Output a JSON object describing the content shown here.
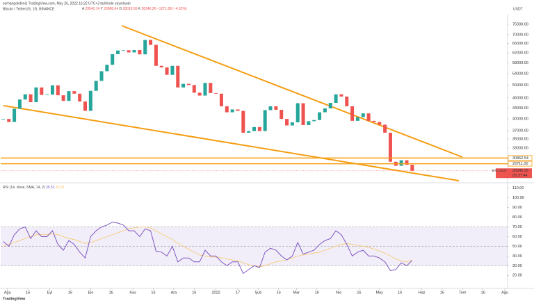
{
  "header": {
    "publisher": "serhangokdeniz TradingView.com, May 26, 2022 16:22 UTC+3 tarihinde yayınlandı",
    "symbol": "Bitcoin / TetherUS, 1G, BINANCE",
    "ohlc": [
      {
        "key": "A",
        "value": 29542.14
      },
      {
        "key": "Y",
        "value": 29886.64
      },
      {
        "key": "D",
        "value": 28019.56
      },
      {
        "key": "K",
        "value": 28346.26
      }
    ],
    "change": "−1271.88 (−4.32%)",
    "currency": "USDT",
    "brand": "TradingView"
  },
  "chart_data": [
    {
      "type": "candlestick",
      "log_scale": true,
      "ylim": [
        26300,
        78500
      ],
      "xlim": [
        -0.5,
        92.5
      ],
      "yticks": [
        {
          "value": 75000,
          "label": "75000.00"
        },
        {
          "value": 70000,
          "label": "70000.00"
        },
        {
          "value": 66000,
          "label": "66000.00"
        },
        {
          "value": 62000,
          "label": "62000.00"
        },
        {
          "value": 58000,
          "label": "58000.00"
        },
        {
          "value": 54000,
          "label": "54000.00"
        },
        {
          "value": 50000,
          "label": "50000.00"
        },
        {
          "value": 46000,
          "label": "46000.00"
        },
        {
          "value": 43000,
          "label": "43000.00"
        },
        {
          "value": 40000,
          "label": "40000.00"
        },
        {
          "value": 37000,
          "label": "37000.00"
        },
        {
          "value": 35000,
          "label": "35000.00"
        },
        {
          "value": 33000,
          "label": "33000.00"
        }
      ],
      "xticks": [
        {
          "value": 0.75,
          "label": "Ağu"
        },
        {
          "value": 4.5,
          "label": "16"
        },
        {
          "value": 8.5,
          "label": "Eyl"
        },
        {
          "value": 12.25,
          "label": "16"
        },
        {
          "value": 16,
          "label": "Eki"
        },
        {
          "value": 19.75,
          "label": "16"
        },
        {
          "value": 23.75,
          "label": "Kas"
        },
        {
          "value": 27.5,
          "label": "16"
        },
        {
          "value": 31.25,
          "label": "Ara"
        },
        {
          "value": 35,
          "label": "16"
        },
        {
          "value": 39,
          "label": "2022"
        },
        {
          "value": 43,
          "label": "17"
        },
        {
          "value": 46.75,
          "label": "Şub"
        },
        {
          "value": 50.5,
          "label": "16"
        },
        {
          "value": 53.75,
          "label": "Mar"
        },
        {
          "value": 57.5,
          "label": "16"
        },
        {
          "value": 61.5,
          "label": "Nis"
        },
        {
          "value": 65.25,
          "label": "16"
        },
        {
          "value": 69,
          "label": "May"
        },
        {
          "value": 72.75,
          "label": "16"
        },
        {
          "value": 76.75,
          "label": "Haz"
        },
        {
          "value": 80.5,
          "label": "16"
        },
        {
          "value": 84.25,
          "label": "Tem"
        },
        {
          "value": 88,
          "label": "16"
        },
        {
          "value": 92,
          "label": "Ağu"
        }
      ],
      "series": [
        {
          "name": "BTCUSDT",
          "up_color": "#26a69a",
          "down_color": "#ef5350",
          "values": [
            40000,
            39200,
            42800,
            45500,
            47100,
            44700,
            49300,
            46900,
            47000,
            50000,
            46800,
            45100,
            48100,
            47300,
            44900,
            42200,
            48200,
            51500,
            54900,
            57300,
            61500,
            63000,
            63100,
            62200,
            63200,
            61400,
            67600,
            65400,
            56900,
            56300,
            53600,
            56900,
            49300,
            50500,
            50100,
            47600,
            46700,
            50800,
            47500,
            47300,
            43500,
            41800,
            42600,
            42200,
            36500,
            36900,
            37900,
            36900,
            42400,
            43500,
            42500,
            40000,
            38300,
            39100,
            44400,
            38400,
            39400,
            39700,
            41800,
            42900,
            44500,
            47100,
            46400,
            43500,
            39500,
            40500,
            41500,
            39500,
            39200,
            38500,
            36500,
            30100,
            29300,
            30400,
            29500,
            28346.26
          ]
        }
      ],
      "levels": [
        {
          "value": 30862.54,
          "label": "30862.54",
          "color": "#f59d12"
        },
        {
          "value": 29711.0,
          "label": "29711.00",
          "color": "#f59d12"
        }
      ],
      "last_price": {
        "symbol": "BTCUSDT",
        "value": 28346.26,
        "label": "28346.26",
        "countdown": "05:37:44",
        "color": "#ef5350"
      }
    },
    {
      "type": "line",
      "title": "RSI (14, close, SMA, 14, 2)",
      "ylim": [
        8,
        112
      ],
      "xlim": [
        -0.5,
        92.5
      ],
      "yticks": [
        {
          "value": 110,
          "label": "110.00"
        },
        {
          "value": 100,
          "label": "100.00"
        },
        {
          "value": 90,
          "label": "90.00"
        },
        {
          "value": 80,
          "label": "80.00"
        },
        {
          "value": 70,
          "label": "70.00"
        },
        {
          "value": 60,
          "label": "60.00"
        },
        {
          "value": 50,
          "label": "50.00"
        },
        {
          "value": 40,
          "label": "40.00"
        },
        {
          "value": 30,
          "label": "30.00"
        },
        {
          "value": 20,
          "label": "20.00"
        }
      ],
      "band": [
        30,
        70
      ],
      "middle": 50,
      "series": [
        {
          "name": "RSI",
          "color": "#7e57c2",
          "values": [
            55,
            50,
            62,
            68,
            70,
            58,
            66,
            60,
            60,
            66,
            52,
            46,
            56,
            52,
            44,
            38,
            60,
            66,
            70,
            72,
            75,
            74,
            72,
            66,
            66,
            60,
            68,
            66,
            45,
            44,
            40,
            50,
            34,
            38,
            38,
            34,
            34,
            46,
            40,
            40,
            34,
            30,
            34,
            34,
            22,
            26,
            30,
            28,
            44,
            48,
            46,
            40,
            36,
            40,
            54,
            42,
            44,
            46,
            52,
            56,
            58,
            66,
            62,
            52,
            40,
            44,
            46,
            40,
            40,
            38,
            34,
            25,
            26,
            33,
            30,
            35.52
          ]
        },
        {
          "name": "SMA",
          "color": "#f5c86a",
          "values": [
            50,
            52,
            54,
            56,
            58,
            60,
            62,
            62,
            62,
            63,
            62,
            60,
            58,
            57,
            55,
            53,
            54,
            56,
            58,
            60,
            62,
            64,
            66,
            68,
            69,
            70,
            70,
            69,
            66,
            63,
            60,
            57,
            53,
            50,
            47,
            44,
            41,
            40,
            39,
            39,
            38,
            37,
            36,
            35,
            33,
            31,
            30,
            29,
            30,
            32,
            34,
            35,
            36,
            38,
            40,
            41,
            42,
            43,
            44,
            46,
            48,
            50,
            52,
            53,
            52,
            51,
            50,
            49,
            47,
            45,
            43,
            40,
            37,
            35,
            34,
            35.93
          ]
        }
      ]
    }
  ]
}
